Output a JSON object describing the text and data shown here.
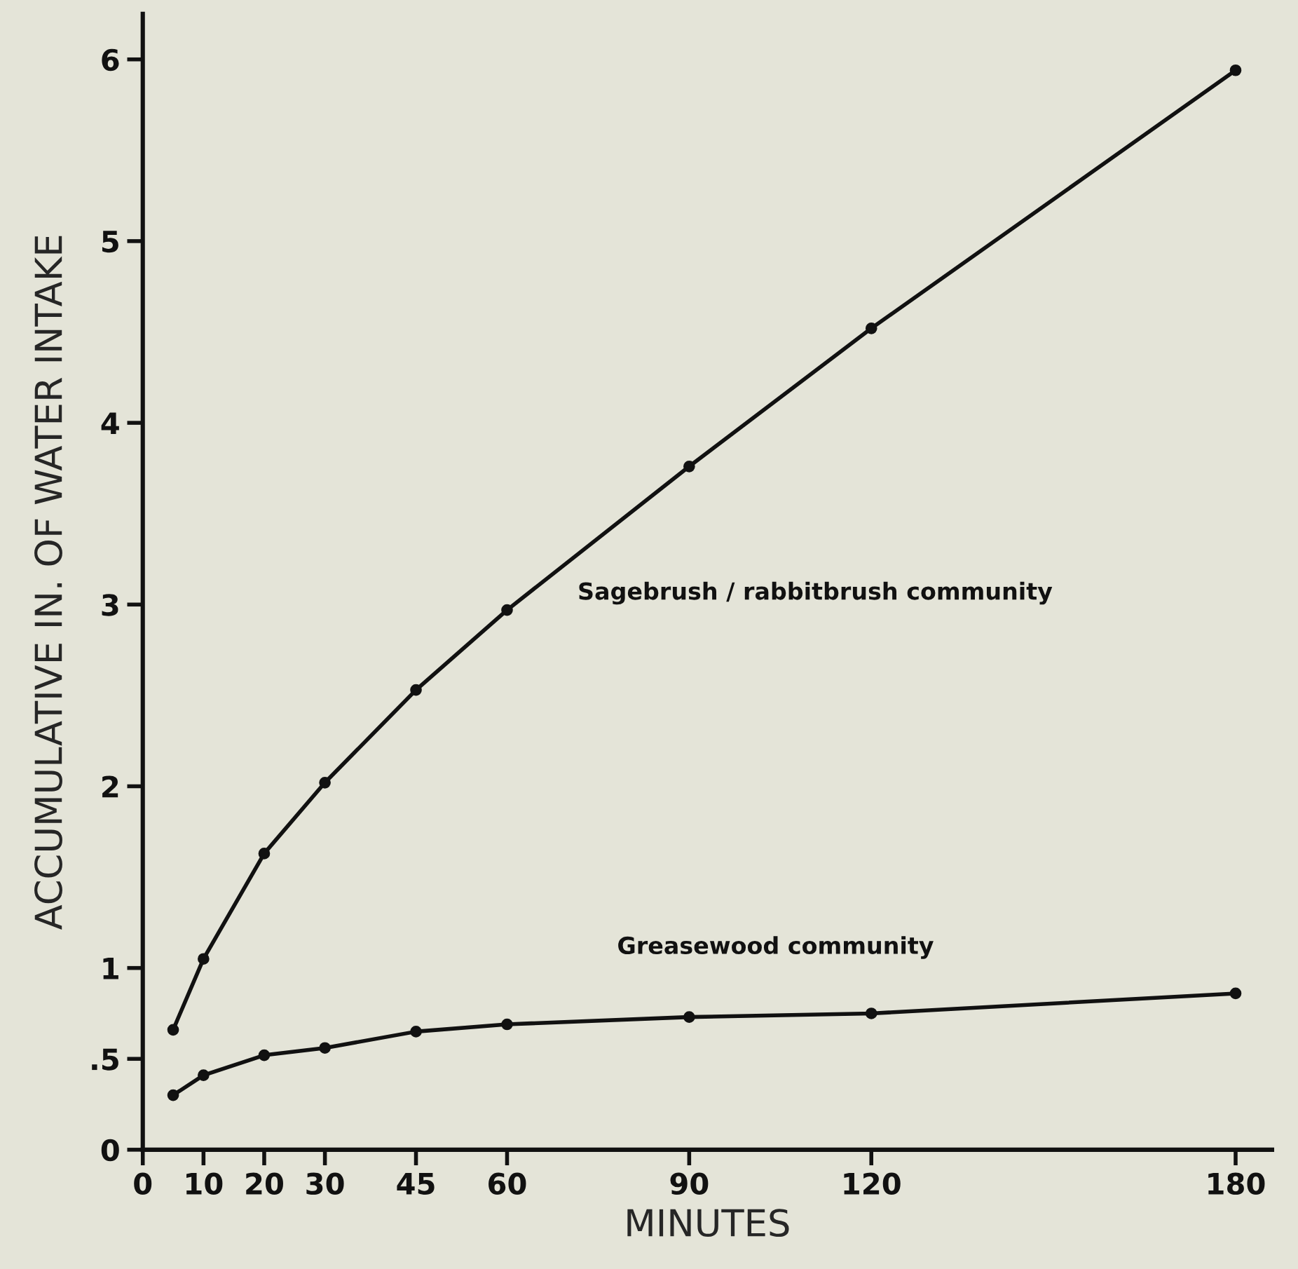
{
  "chart_data": {
    "type": "line",
    "xlabel": "MINUTES",
    "ylabel": "ACCUMULATIVE IN. OF WATER INTAKE",
    "x": [
      5,
      10,
      20,
      30,
      45,
      60,
      90,
      120,
      180
    ],
    "series": [
      {
        "name": "Sagebrush / rabbitbrush community",
        "color": "#111111",
        "values": [
          0.66,
          1.05,
          1.63,
          2.02,
          2.53,
          2.97,
          3.76,
          4.52,
          5.94
        ]
      },
      {
        "name": "Greasewood community",
        "color": "#111111",
        "values": [
          0.3,
          0.41,
          0.52,
          0.56,
          0.65,
          0.69,
          0.73,
          0.75,
          0.86
        ]
      }
    ],
    "xlim": [
      0,
      186
    ],
    "ylim": [
      0,
      6.25
    ],
    "xticks": [
      0,
      10,
      20,
      30,
      45,
      60,
      90,
      120,
      180
    ],
    "yticks": [
      0,
      {
        "value": 0.5,
        "label": ".5"
      },
      1,
      2,
      3,
      4,
      5,
      6
    ],
    "marker": "circle",
    "line_style": "solid",
    "grid": false,
    "legend": false
  }
}
